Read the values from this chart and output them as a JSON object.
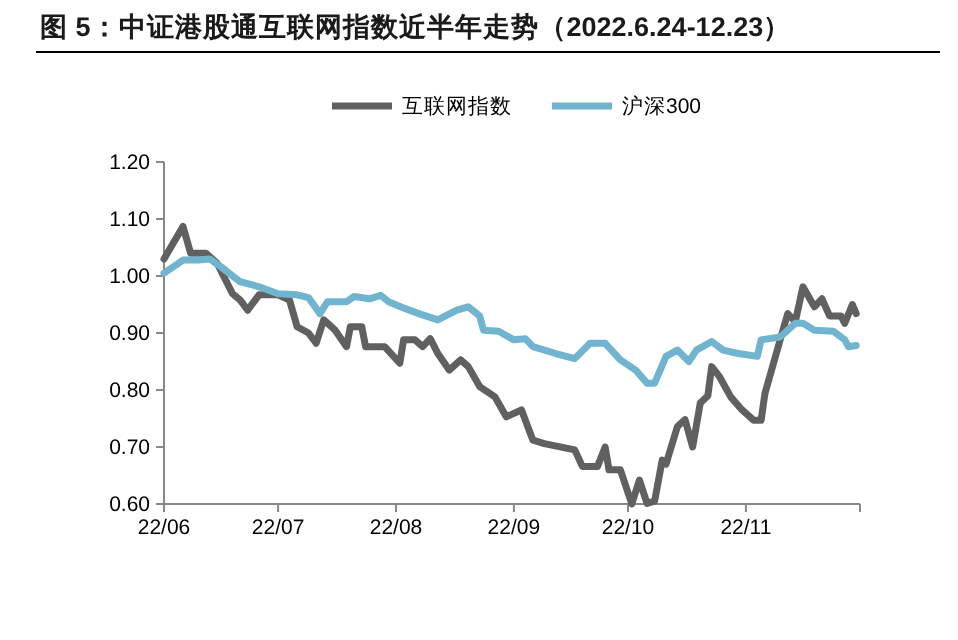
{
  "chart_data": {
    "type": "line",
    "title": "图 5：中证港股通互联网指数近半年走势（2022.6.24-12.23）",
    "xlim": [
      "2022-06-24",
      "2022-12-24"
    ],
    "xticks": [
      {
        "value": "2022-06-24",
        "label": "22/06"
      },
      {
        "value": "2022-07-24",
        "label": "22/07"
      },
      {
        "value": "2022-08-24",
        "label": "22/08"
      },
      {
        "value": "2022-09-24",
        "label": "22/09"
      },
      {
        "value": "2022-10-24",
        "label": "22/10"
      },
      {
        "value": "2022-11-24",
        "label": "22/11"
      },
      {
        "value": "2022-12-24",
        "label": null
      }
    ],
    "ylim": [
      0.6,
      1.2
    ],
    "yticks": [
      {
        "value": 0.6,
        "label": "0.60"
      },
      {
        "value": 0.7,
        "label": "0.70"
      },
      {
        "value": 0.8,
        "label": "0.80"
      },
      {
        "value": 0.9,
        "label": "0.90"
      },
      {
        "value": 1.0,
        "label": "1.00"
      },
      {
        "value": 1.1,
        "label": "1.10"
      },
      {
        "value": 1.2,
        "label": "1.20"
      }
    ],
    "grid": false,
    "legend": "top",
    "line_style": "solid",
    "marker": "none",
    "series": [
      {
        "name": "互联网指数",
        "color": "#606060",
        "x": [
          "2022-06-24",
          "2022-06-29",
          "2022-07-01",
          "2022-07-05",
          "2022-07-08",
          "2022-07-12",
          "2022-07-14",
          "2022-07-16",
          "2022-07-19",
          "2022-07-24",
          "2022-07-27",
          "2022-07-29",
          "2022-08-01",
          "2022-08-03",
          "2022-08-05",
          "2022-08-08",
          "2022-08-11",
          "2022-08-12",
          "2022-08-15",
          "2022-08-16",
          "2022-08-21",
          "2022-08-25",
          "2022-08-26",
          "2022-08-29",
          "2022-08-31",
          "2022-09-02",
          "2022-09-04",
          "2022-09-07",
          "2022-09-10",
          "2022-09-12",
          "2022-09-15",
          "2022-09-19",
          "2022-09-22",
          "2022-09-26",
          "2022-09-29",
          "2022-10-02",
          "2022-10-10",
          "2022-10-12",
          "2022-10-16",
          "2022-10-18",
          "2022-10-19",
          "2022-10-22",
          "2022-10-25",
          "2022-10-27",
          "2022-10-29",
          "2022-10-31",
          "2022-11-02",
          "2022-11-03",
          "2022-11-06",
          "2022-11-08",
          "2022-11-10",
          "2022-11-12",
          "2022-11-14",
          "2022-11-15",
          "2022-11-17",
          "2022-11-20",
          "2022-11-23",
          "2022-11-26",
          "2022-11-28",
          "2022-11-29",
          "2022-12-03",
          "2022-12-05",
          "2022-12-07",
          "2022-12-09",
          "2022-12-12",
          "2022-12-14",
          "2022-12-16",
          "2022-12-19",
          "2022-12-20",
          "2022-12-22",
          "2022-12-23"
        ],
        "values": [
          1.03,
          1.087,
          1.04,
          1.04,
          1.022,
          0.969,
          0.958,
          0.94,
          0.967,
          0.967,
          0.958,
          0.911,
          0.9,
          0.882,
          0.923,
          0.905,
          0.876,
          0.911,
          0.911,
          0.876,
          0.876,
          0.847,
          0.888,
          0.888,
          0.876,
          0.89,
          0.864,
          0.835,
          0.853,
          0.841,
          0.806,
          0.788,
          0.753,
          0.765,
          0.712,
          0.706,
          0.695,
          0.666,
          0.666,
          0.7,
          0.66,
          0.66,
          0.6,
          0.642,
          0.601,
          0.605,
          0.677,
          0.67,
          0.736,
          0.748,
          0.7,
          0.777,
          0.79,
          0.841,
          0.824,
          0.788,
          0.765,
          0.747,
          0.747,
          0.794,
          0.888,
          0.934,
          0.92,
          0.981,
          0.946,
          0.96,
          0.93,
          0.93,
          0.917,
          0.95,
          0.934
        ]
      },
      {
        "name": "沪深300",
        "color": "#70b4cf",
        "x": [
          "2022-06-24",
          "2022-06-29",
          "2022-07-03",
          "2022-07-06",
          "2022-07-09",
          "2022-07-14",
          "2022-07-19",
          "2022-07-24",
          "2022-07-29",
          "2022-08-01",
          "2022-08-04",
          "2022-08-06",
          "2022-08-11",
          "2022-08-13",
          "2022-08-17",
          "2022-08-20",
          "2022-08-22",
          "2022-08-26",
          "2022-08-30",
          "2022-09-04",
          "2022-09-06",
          "2022-09-09",
          "2022-09-12",
          "2022-09-15",
          "2022-09-16",
          "2022-09-20",
          "2022-09-24",
          "2022-09-27",
          "2022-09-29",
          "2022-10-05",
          "2022-10-10",
          "2022-10-14",
          "2022-10-18",
          "2022-10-22",
          "2022-10-26",
          "2022-10-29",
          "2022-10-31",
          "2022-11-03",
          "2022-11-06",
          "2022-11-09",
          "2022-11-11",
          "2022-11-15",
          "2022-11-18",
          "2022-11-22",
          "2022-11-27",
          "2022-11-28",
          "2022-12-03",
          "2022-12-07",
          "2022-12-09",
          "2022-12-12",
          "2022-12-17",
          "2022-12-20",
          "2022-12-21",
          "2022-12-23"
        ],
        "values": [
          1.005,
          1.028,
          1.028,
          1.03,
          1.016,
          0.99,
          0.981,
          0.969,
          0.967,
          0.962,
          0.934,
          0.955,
          0.955,
          0.964,
          0.96,
          0.966,
          0.955,
          0.944,
          0.934,
          0.923,
          0.93,
          0.94,
          0.946,
          0.93,
          0.905,
          0.903,
          0.888,
          0.89,
          0.876,
          0.864,
          0.855,
          0.882,
          0.882,
          0.853,
          0.835,
          0.812,
          0.812,
          0.859,
          0.87,
          0.85,
          0.87,
          0.885,
          0.87,
          0.864,
          0.859,
          0.888,
          0.893,
          0.917,
          0.917,
          0.905,
          0.903,
          0.888,
          0.876,
          0.878
        ]
      }
    ]
  }
}
